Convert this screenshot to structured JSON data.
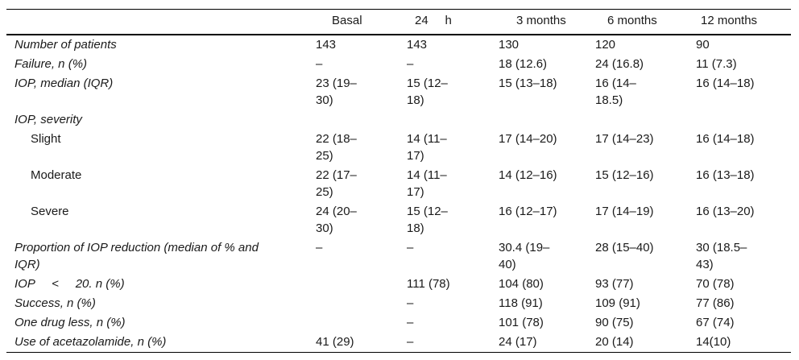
{
  "table": {
    "columns": [
      "",
      "Basal",
      "24     h",
      "3 months",
      "6 months",
      "12 months"
    ],
    "rows": [
      {
        "label": "Number of patients",
        "italic": true,
        "indent": false,
        "values": [
          "143",
          "143",
          "130",
          "120",
          "90"
        ]
      },
      {
        "label": "Failure, n (%)",
        "italic": true,
        "indent": false,
        "values": [
          "–",
          "–",
          "18 (12.6)",
          "24 (16.8)",
          "11 (7.3)"
        ]
      },
      {
        "label": "IOP, median (IQR)",
        "italic": true,
        "indent": false,
        "values": [
          "23 (19–30)",
          "15 (12–18)",
          "15 (13–18)",
          "16 (14–18.5)",
          "16 (14–18)"
        ]
      },
      {
        "label": "IOP, severity",
        "italic": true,
        "indent": false,
        "values": [
          "",
          "",
          "",
          "",
          ""
        ]
      },
      {
        "label": "Slight",
        "italic": false,
        "indent": true,
        "values": [
          "22 (18–25)",
          "14 (11–17)",
          "17 (14–20)",
          "17 (14–23)",
          "16 (14–18)"
        ]
      },
      {
        "label": "Moderate",
        "italic": false,
        "indent": true,
        "values": [
          "22 (17–25)",
          "14 (11–17)",
          "14 (12–16)",
          "15 (12–16)",
          "16 (13–18)"
        ]
      },
      {
        "label": "Severe",
        "italic": false,
        "indent": true,
        "values": [
          "24 (20–30)",
          "15 (12–18)",
          "16 (12–17)",
          "17 (14–19)",
          "16 (13–20)"
        ]
      },
      {
        "label": "Proportion of IOP reduction (median of % and IQR)",
        "italic": true,
        "indent": false,
        "values": [
          "–",
          "–",
          "30.4 (19–40)",
          "28 (15–40)",
          "30 (18.5–43)"
        ]
      },
      {
        "label": "IOP     <     20. n (%)",
        "italic": true,
        "indent": false,
        "values": [
          "",
          "111 (78)",
          "104 (80)",
          "93 (77)",
          "70 (78)"
        ]
      },
      {
        "label": "Success, n (%)",
        "italic": true,
        "indent": false,
        "values": [
          "",
          "–",
          "118 (91)",
          "109 (91)",
          "77 (86)"
        ]
      },
      {
        "label": "One drug less, n (%)",
        "italic": true,
        "indent": false,
        "values": [
          "",
          "–",
          "101 (78)",
          "90 (75)",
          "67 (74)"
        ]
      },
      {
        "label": "Use of acetazolamide, n (%)",
        "italic": true,
        "indent": false,
        "values": [
          "41 (29)",
          "–",
          "24 (17)",
          "20 (14)",
          "14(10)"
        ]
      }
    ]
  }
}
